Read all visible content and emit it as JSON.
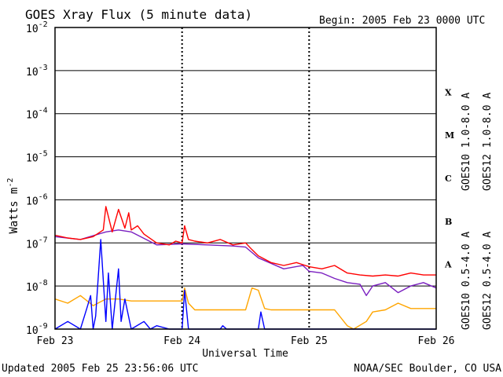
{
  "chart_data": {
    "type": "line",
    "title": "GOES Xray Flux (5 minute data)",
    "begin_label": "Begin:  2005 Feb 23 0000 UTC",
    "xlabel": "Universal Time",
    "ylabel": "Watts m",
    "ylabel_sup": "-2",
    "x_ticks": [
      "Feb 23",
      "Feb 24",
      "Feb 25",
      "Feb 26"
    ],
    "xlim_days": [
      0,
      3
    ],
    "y_log": true,
    "ylim": [
      1e-09,
      0.01
    ],
    "y_ticks": [
      {
        "base": "10",
        "exp": "-2"
      },
      {
        "base": "10",
        "exp": "-3"
      },
      {
        "base": "10",
        "exp": "-4"
      },
      {
        "base": "10",
        "exp": "-5"
      },
      {
        "base": "10",
        "exp": "-6"
      },
      {
        "base": "10",
        "exp": "-7"
      },
      {
        "base": "10",
        "exp": "-8"
      },
      {
        "base": "10",
        "exp": "-9"
      }
    ],
    "flare_classes": [
      "X",
      "M",
      "C",
      "B",
      "A"
    ],
    "grid": true,
    "legend_right": [
      {
        "name": "GOES12 1.0-8.0 A",
        "color": "#ff0000"
      },
      {
        "name": "GOES10 1.0-8.0 A",
        "color": "#7a1fc0"
      },
      {
        "name": "GOES12 0.5-4.0 A",
        "color": "#0000ff"
      },
      {
        "name": "GOES10 0.5-4.0 A",
        "color": "#ffa500"
      }
    ],
    "series": [
      {
        "name": "GOES12 1.0-8.0 A",
        "color": "#ff0000",
        "x": [
          0,
          0.1,
          0.2,
          0.3,
          0.38,
          0.4,
          0.45,
          0.5,
          0.55,
          0.58,
          0.6,
          0.65,
          0.7,
          0.8,
          0.9,
          0.95,
          1.0,
          1.02,
          1.05,
          1.1,
          1.2,
          1.3,
          1.4,
          1.5,
          1.55,
          1.6,
          1.7,
          1.8,
          1.9,
          2.0,
          2.1,
          2.2,
          2.3,
          2.4,
          2.5,
          2.6,
          2.7,
          2.8,
          2.9,
          3.0
        ],
        "y": [
          1.5e-07,
          1.3e-07,
          1.2e-07,
          1.4e-07,
          2e-07,
          7e-07,
          1.8e-07,
          6e-07,
          2.2e-07,
          5e-07,
          2e-07,
          2.5e-07,
          1.6e-07,
          1e-07,
          9e-08,
          1.1e-07,
          1e-07,
          2.5e-07,
          1.2e-07,
          1.1e-07,
          1e-07,
          1.2e-07,
          9e-08,
          1e-07,
          7e-08,
          5e-08,
          3.5e-08,
          3e-08,
          3.5e-08,
          2.8e-08,
          2.5e-08,
          3e-08,
          2e-08,
          1.8e-08,
          1.7e-08,
          1.8e-08,
          1.7e-08,
          2e-08,
          1.8e-08,
          1.8e-08
        ]
      },
      {
        "name": "GOES10 1.0-8.0 A",
        "color": "#7a1fc0",
        "x": [
          0,
          0.2,
          0.4,
          0.5,
          0.6,
          0.8,
          1.0,
          1.2,
          1.4,
          1.5,
          1.6,
          1.8,
          1.95,
          2.0,
          2.1,
          2.2,
          2.3,
          2.4,
          2.45,
          2.5,
          2.6,
          2.7,
          2.8,
          2.9,
          3.0
        ],
        "y": [
          1.4e-07,
          1.2e-07,
          1.8e-07,
          2e-07,
          1.8e-07,
          9e-08,
          9.5e-08,
          9e-08,
          8.5e-08,
          8e-08,
          4.5e-08,
          2.5e-08,
          3e-08,
          2.2e-08,
          2e-08,
          1.5e-08,
          1.2e-08,
          1.1e-08,
          6e-09,
          1e-08,
          1.2e-08,
          7e-09,
          1e-08,
          1.2e-08,
          9e-09
        ]
      },
      {
        "name": "GOES12 0.5-4.0 A",
        "color": "#0000ff",
        "x": [
          0,
          0.1,
          0.2,
          0.25,
          0.28,
          0.3,
          0.32,
          0.36,
          0.4,
          0.42,
          0.45,
          0.5,
          0.52,
          0.55,
          0.6,
          0.7,
          0.75,
          0.8,
          0.9,
          1.0,
          1.02,
          1.05,
          1.2,
          1.3,
          1.32,
          1.35,
          1.6,
          1.62,
          1.65,
          3.0
        ],
        "y": [
          8e-10,
          1.5e-09,
          8e-10,
          3e-09,
          6e-09,
          8e-10,
          2e-09,
          1.2e-07,
          1.5e-09,
          2e-08,
          1e-09,
          2.5e-08,
          1.5e-09,
          5e-09,
          8e-10,
          1.5e-09,
          7e-10,
          1.2e-09,
          6e-10,
          9e-10,
          8e-09,
          8e-10,
          6e-10,
          6e-10,
          1.2e-09,
          5e-10,
          5e-10,
          2.5e-09,
          5e-10,
          5e-10
        ]
      },
      {
        "name": "GOES10 0.5-4.0 A",
        "color": "#ffa500",
        "x": [
          0,
          0.1,
          0.2,
          0.3,
          0.4,
          0.5,
          0.6,
          0.7,
          0.8,
          0.9,
          1.0,
          1.02,
          1.05,
          1.1,
          1.2,
          1.3,
          1.4,
          1.5,
          1.55,
          1.6,
          1.65,
          1.7,
          1.8,
          2.0,
          2.2,
          2.3,
          2.35,
          2.45,
          2.5,
          2.6,
          2.7,
          2.8,
          2.9,
          3.0
        ],
        "y": [
          5e-09,
          4e-09,
          6e-09,
          3.5e-09,
          5e-09,
          5e-09,
          4.5e-09,
          4.5e-09,
          4.5e-09,
          4.5e-09,
          4.5e-09,
          9e-09,
          4e-09,
          2.8e-09,
          2.8e-09,
          2.8e-09,
          2.8e-09,
          2.8e-09,
          9e-09,
          8e-09,
          3e-09,
          2.8e-09,
          2.8e-09,
          2.8e-09,
          2.8e-09,
          1.2e-09,
          1e-09,
          1.5e-09,
          2.5e-09,
          2.8e-09,
          4e-09,
          3e-09,
          3e-09,
          3e-09
        ]
      }
    ]
  },
  "footer": {
    "updated": "Updated 2005 Feb 25 23:56:06 UTC",
    "credit": "NOAA/SEC Boulder, CO USA"
  }
}
